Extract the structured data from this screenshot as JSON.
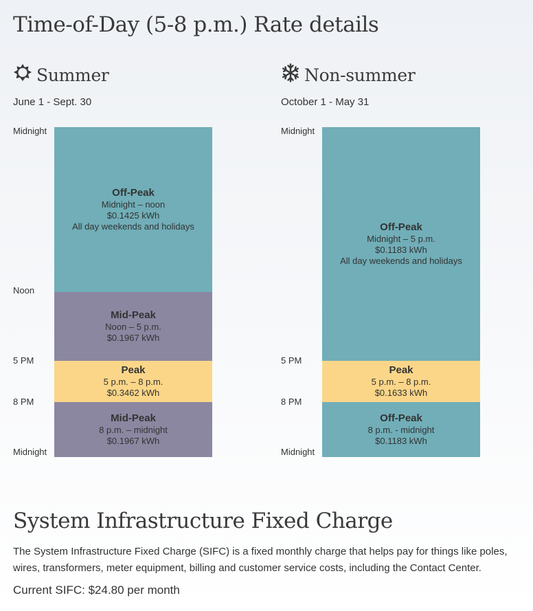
{
  "page_title": "Time-of-Day (5-8 p.m.) Rate details",
  "summer": {
    "icon": "sun-icon",
    "title": "Summer",
    "range": "June 1 - Sept. 30",
    "time_labels": [
      "Midnight",
      "Noon",
      "5 PM",
      "8 PM",
      "Midnight"
    ],
    "blocks": [
      {
        "name": "Off-Peak",
        "hours": "Midnight – noon",
        "rate": "$0.1425 kWh",
        "note": "All day weekends and holidays",
        "color": "#71aeb8"
      },
      {
        "name": "Mid-Peak",
        "hours": "Noon – 5 p.m.",
        "rate": "$0.1967 kWh",
        "color": "#8b87a1"
      },
      {
        "name": "Peak",
        "hours": "5 p.m. – 8 p.m.",
        "rate": "$0.3462 kWh",
        "color": "#fbd688"
      },
      {
        "name": "Mid-Peak",
        "hours": "8 p.m. – midnight",
        "rate": "$0.1967 kWh",
        "color": "#8b87a1"
      }
    ]
  },
  "nonsummer": {
    "icon": "snowflake-icon",
    "title": "Non-summer",
    "range": "October 1 - May 31",
    "time_labels": [
      "Midnight",
      "5 PM",
      "8 PM",
      "Midnight"
    ],
    "blocks": [
      {
        "name": "Off-Peak",
        "hours": "Midnight – 5 p.m.",
        "rate": "$0.1183 kWh",
        "note": "All day weekends and holidays",
        "color": "#71aeb8"
      },
      {
        "name": "Peak",
        "hours": "5 p.m. – 8 p.m.",
        "rate": "$0.1633 kWh",
        "color": "#fbd688"
      },
      {
        "name": "Off-Peak",
        "hours": "8 p.m. - midnight",
        "rate": "$0.1183 kWh",
        "color": "#71aeb8"
      }
    ]
  },
  "sifc": {
    "title": "System Infrastructure Fixed Charge",
    "description": "The System Infrastructure Fixed Charge (SIFC) is a fixed monthly charge that helps pay for things like poles, wires, transformers, meter equipment, billing and customer service costs, including the Contact Center.",
    "current": "Current SIFC: $24.80 per month"
  }
}
